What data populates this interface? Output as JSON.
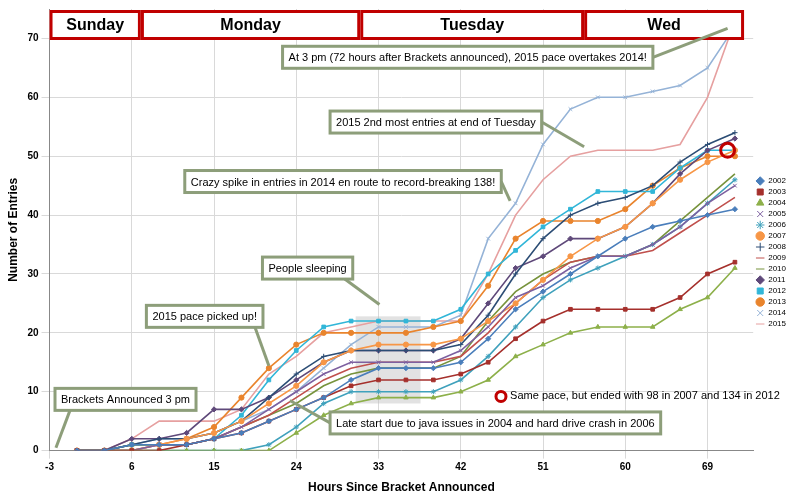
{
  "chart_data": {
    "type": "line",
    "x_label": "Hours Since Bracket Announced",
    "y_label": "Number of Entries",
    "x": [
      0,
      3,
      6,
      9,
      12,
      15,
      18,
      21,
      24,
      27,
      30,
      33,
      36,
      39,
      42,
      45,
      48,
      51,
      54,
      57,
      60,
      63,
      66,
      69,
      72
    ],
    "series": [
      {
        "name": "2002",
        "color": "#4a7ebb",
        "marker": "diamond",
        "values": [
          0,
          0,
          1,
          1,
          1,
          2,
          3,
          5,
          7,
          9,
          12,
          14,
          14,
          14,
          15,
          19,
          24,
          27,
          30,
          33,
          36,
          38,
          39,
          40,
          41
        ]
      },
      {
        "name": "2003",
        "color": "#a5302c",
        "marker": "square",
        "values": [
          0,
          0,
          0,
          0,
          1,
          2,
          3,
          5,
          7,
          9,
          11,
          12,
          12,
          12,
          13,
          15,
          19,
          22,
          24,
          24,
          24,
          24,
          26,
          30,
          32
        ]
      },
      {
        "name": "2004",
        "color": "#8db04a",
        "marker": "triangle",
        "values": [
          0,
          0,
          0,
          0,
          0,
          0,
          0,
          0,
          3,
          6,
          8,
          9,
          9,
          9,
          10,
          12,
          16,
          18,
          20,
          21,
          21,
          21,
          24,
          26,
          31
        ]
      },
      {
        "name": "2005",
        "color": "#7d60a0",
        "marker": "x",
        "values": [
          0,
          0,
          0,
          1,
          1,
          2,
          4,
          7,
          10,
          13,
          15,
          15,
          15,
          15,
          17,
          21,
          26,
          28,
          31,
          33,
          33,
          35,
          38,
          42,
          45
        ]
      },
      {
        "name": "2006",
        "color": "#3fa1bc",
        "marker": "star",
        "values": [
          0,
          0,
          0,
          0,
          0,
          0,
          0,
          1,
          4,
          8,
          10,
          10,
          10,
          10,
          12,
          16,
          21,
          26,
          29,
          31,
          33,
          35,
          38,
          42,
          46
        ]
      },
      {
        "name": "2007",
        "color": "#f79646",
        "marker": "circle",
        "values": [
          0,
          0,
          0,
          1,
          2,
          3,
          5,
          8,
          11,
          15,
          17,
          18,
          18,
          18,
          19,
          22,
          25,
          29,
          33,
          36,
          38,
          42,
          46,
          49,
          51
        ]
      },
      {
        "name": "2008",
        "color": "#2c4d75",
        "marker": "plus",
        "values": [
          0,
          0,
          1,
          2,
          2,
          3,
          5,
          9,
          13,
          16,
          17,
          17,
          17,
          17,
          18,
          23,
          30,
          36,
          40,
          42,
          43,
          45,
          49,
          52,
          54
        ]
      },
      {
        "name": "2009",
        "color": "#c0504d",
        "marker": "none",
        "values": [
          0,
          0,
          0,
          1,
          1,
          2,
          4,
          6,
          9,
          12,
          14,
          15,
          15,
          15,
          16,
          20,
          25,
          29,
          32,
          33,
          33,
          34,
          37,
          40,
          43
        ]
      },
      {
        "name": "2010",
        "color": "#77933c",
        "marker": "none",
        "values": [
          0,
          0,
          1,
          1,
          1,
          2,
          4,
          6,
          8,
          11,
          13,
          14,
          14,
          14,
          16,
          22,
          27,
          30,
          32,
          33,
          33,
          35,
          39,
          43,
          47
        ]
      },
      {
        "name": "2011",
        "color": "#5f497a",
        "marker": "diamond",
        "values": [
          0,
          0,
          2,
          2,
          3,
          7,
          7,
          9,
          12,
          15,
          17,
          17,
          17,
          17,
          19,
          25,
          31,
          33,
          36,
          36,
          38,
          42,
          47,
          51,
          53
        ]
      },
      {
        "name": "2012",
        "color": "#31b6d8",
        "marker": "square",
        "values": [
          0,
          0,
          1,
          1,
          1,
          2,
          6,
          12,
          17,
          21,
          22,
          22,
          22,
          22,
          24,
          30,
          34,
          38,
          41,
          44,
          44,
          44,
          48,
          51,
          51
        ]
      },
      {
        "name": "2013",
        "color": "#e9842d",
        "marker": "circle",
        "values": [
          0,
          0,
          1,
          1,
          2,
          4,
          9,
          14,
          18,
          20,
          20,
          20,
          20,
          21,
          22,
          28,
          36,
          39,
          39,
          39,
          41,
          45,
          48,
          50,
          50
        ]
      },
      {
        "name": "2014",
        "color": "#95b3d7",
        "marker": "x",
        "values": [
          0,
          0,
          1,
          2,
          2,
          3,
          5,
          7,
          10,
          14,
          18,
          21,
          21,
          21,
          23,
          36,
          42,
          52,
          58,
          60,
          60,
          61,
          62,
          65,
          72
        ]
      },
      {
        "name": "2015",
        "color": "#e6a0a0",
        "marker": "none",
        "values": [
          0,
          0,
          2,
          5,
          5,
          5,
          7,
          13,
          16,
          20,
          21,
          22,
          22,
          22,
          22,
          30,
          40,
          46,
          50,
          51,
          51,
          51,
          52,
          60,
          73
        ]
      }
    ],
    "xlim": [
      -3,
      74
    ],
    "xticks": [
      -3,
      6,
      15,
      24,
      33,
      42,
      51,
      60,
      69
    ],
    "ylim": [
      0,
      75
    ],
    "yticks": [
      0,
      10,
      20,
      30,
      40,
      50,
      60,
      70
    ],
    "grid": true,
    "legend": "right",
    "day_labels": [
      "Sunday",
      "Monday",
      "Tuesday",
      "Wed"
    ],
    "annotations": [
      "At 3 pm (72 hours after Brackets announced), 2015 pace overtakes 2014!",
      "2015 2nd most entries at end of Tuesday",
      "Crazy spike in entries in 2014 en route to record-breaking 138!",
      "People sleeping",
      "2015 pace picked up!",
      "Brackets Announced 3 pm",
      "Same pace, but ended with 98 in 2007 and 134 in 2012",
      "Late start due to java issues in 2004 and hard drive crash in 2006"
    ]
  }
}
